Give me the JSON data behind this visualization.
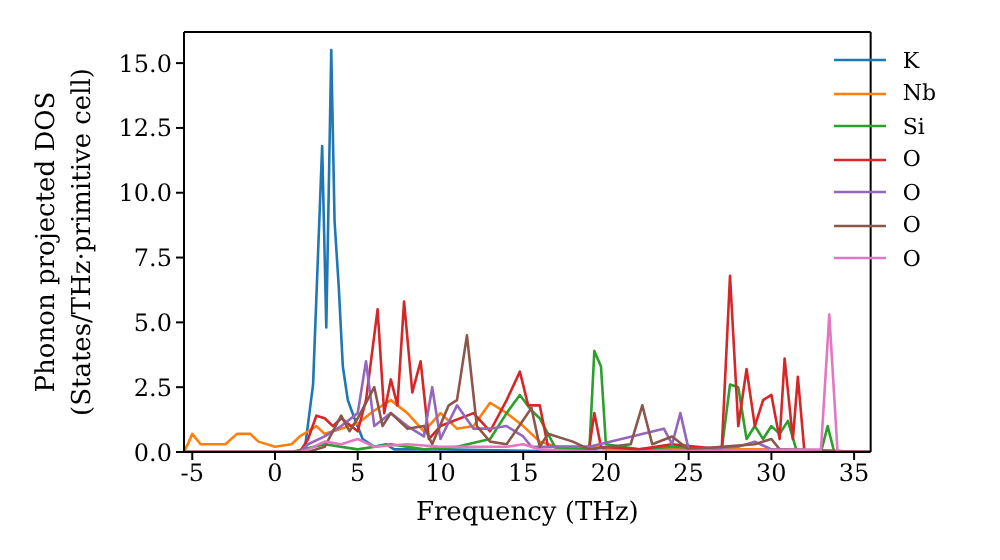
{
  "chart_data": {
    "type": "line",
    "xlabel": "Frequency (THz)",
    "ylabel": "Phonon projected DOS\n(States/THz·primitive cell)",
    "xlim": [
      -5.5,
      36
    ],
    "xticks": [
      -5,
      0,
      5,
      10,
      15,
      20,
      25,
      30,
      35
    ],
    "ylim": [
      0,
      16.2
    ],
    "yticks": [
      {
        "value": 0,
        "label": "0.0"
      },
      {
        "value": 2.5,
        "label": "2.5"
      },
      {
        "value": 5,
        "label": "5.0"
      },
      {
        "value": 7.5,
        "label": "7.5"
      },
      {
        "value": 10,
        "label": "10.0"
      },
      {
        "value": 12.5,
        "label": "12.5"
      },
      {
        "value": 15,
        "label": "15.0"
      }
    ],
    "legend": "top right",
    "grid": false,
    "series": [
      {
        "name": "K",
        "color": "#1f77b4",
        "x": [
          -5.5,
          1.5,
          1.8,
          2.3,
          2.85,
          3.1,
          3.4,
          3.6,
          3.85,
          4.1,
          4.4,
          4.8,
          5.3,
          6,
          6.7,
          7.2,
          10,
          20,
          30,
          36
        ],
        "values": [
          0,
          0,
          0.1,
          2.6,
          11.8,
          4.8,
          15.5,
          8.9,
          6.4,
          3.3,
          2,
          1.3,
          0.5,
          0.2,
          0.3,
          0.1,
          0.1,
          0,
          0,
          0
        ]
      },
      {
        "name": "Nb",
        "color": "#ff7f0e",
        "x": [
          -5.5,
          -5.2,
          -5,
          -4.5,
          -4,
          -3,
          -2.3,
          -1.5,
          -1,
          0,
          1,
          1.5,
          2,
          2.5,
          3,
          4,
          5,
          6,
          7,
          8,
          9,
          10,
          11,
          12,
          13,
          14,
          15,
          16,
          17,
          18,
          19.5,
          20,
          25,
          30,
          36
        ],
        "values": [
          0,
          0.4,
          0.7,
          0.3,
          0.3,
          0.3,
          0.7,
          0.7,
          0.4,
          0.2,
          0.3,
          0.6,
          0.8,
          1,
          0.7,
          0.9,
          1.1,
          1.6,
          2,
          1.5,
          0.8,
          1.5,
          0.9,
          1,
          1.9,
          1.5,
          1,
          0.4,
          0.2,
          0.1,
          0.2,
          0.1,
          0.1,
          0.1,
          0
        ]
      },
      {
        "name": "Si",
        "color": "#2ca02c",
        "x": [
          -5.5,
          1,
          3,
          5,
          7,
          9,
          11,
          13,
          14,
          14.8,
          15.5,
          16,
          17,
          19,
          19.3,
          19.7,
          20,
          22,
          24,
          27,
          27.5,
          28,
          28.5,
          29,
          29.5,
          30,
          30.5,
          31,
          31.5,
          33,
          33.4,
          33.8,
          36
        ],
        "values": [
          0,
          0,
          0.3,
          0.1,
          0.3,
          0.1,
          0.2,
          0.5,
          1.5,
          2.2,
          1.6,
          1.3,
          0.1,
          0.1,
          3.9,
          3.3,
          0.3,
          0.1,
          0.2,
          0.1,
          2.6,
          2.5,
          0.5,
          1,
          0.5,
          1,
          0.7,
          1.2,
          0.1,
          0,
          1,
          0,
          0
        ]
      },
      {
        "name": "O",
        "color": "#d62728",
        "x": [
          -5.5,
          1.5,
          2,
          2.5,
          3,
          3.5,
          4,
          5,
          5.5,
          6.2,
          6.6,
          7,
          7.4,
          7.8,
          8.3,
          8.8,
          9.3,
          10,
          12,
          13,
          14,
          14.8,
          15.3,
          16,
          16.5,
          19,
          19.3,
          19.7,
          22,
          24,
          27,
          27.5,
          28,
          28.5,
          29,
          29.5,
          30,
          30.5,
          30.8,
          31.3,
          31.6,
          32,
          36
        ],
        "values": [
          0,
          0,
          0.5,
          1.4,
          1.3,
          1,
          1.3,
          0.8,
          2,
          5.5,
          1.5,
          2.8,
          1.8,
          5.8,
          2.3,
          3.5,
          0.5,
          1,
          1.5,
          0.8,
          2,
          3.1,
          1.8,
          1.8,
          0.2,
          0.2,
          1.5,
          0.2,
          0.1,
          0.3,
          0.1,
          6.8,
          1,
          3.2,
          1,
          2,
          2.2,
          0.5,
          3.6,
          0.5,
          2.9,
          0,
          0
        ]
      },
      {
        "name": "O",
        "color": "#9467bd",
        "x": [
          -5.5,
          1.5,
          2,
          3,
          4,
          5,
          5.5,
          6,
          7,
          8,
          9,
          9.5,
          10,
          11,
          12,
          13,
          14,
          15,
          15.5,
          19,
          23.5,
          24,
          24.5,
          25,
          28,
          29,
          30,
          36
        ],
        "values": [
          0,
          0,
          0.3,
          0.6,
          1,
          1.5,
          3.5,
          1,
          1.5,
          1,
          0.6,
          2.5,
          0.5,
          1.8,
          0.9,
          0.9,
          1,
          0.6,
          0.2,
          0.2,
          0.9,
          0.3,
          1.5,
          0.1,
          0.2,
          0.4,
          0.1,
          0
        ]
      },
      {
        "name": "O",
        "color": "#8c564b",
        "x": [
          -5.5,
          2,
          3,
          4,
          4.5,
          5,
          6,
          6.5,
          7,
          8,
          9,
          9.5,
          10.5,
          11,
          11.6,
          12.2,
          13,
          14,
          15.5,
          16,
          16.5,
          18,
          19,
          21.5,
          22.2,
          22.8,
          24,
          25,
          29,
          30,
          30.5,
          36
        ],
        "values": [
          0,
          0,
          0.2,
          1.4,
          0.8,
          1.3,
          2.5,
          1,
          1.5,
          0.9,
          1,
          0.3,
          1.8,
          2,
          4.5,
          1,
          0.4,
          0.3,
          1.7,
          0.2,
          0.7,
          0.4,
          0.1,
          0.3,
          1.8,
          0.3,
          0.6,
          0.1,
          0.3,
          0.5,
          0.1,
          0
        ]
      },
      {
        "name": "O",
        "color": "#e377c2",
        "x": [
          -5.5,
          1.5,
          2,
          3,
          4,
          5,
          6,
          8,
          10,
          14,
          15,
          16,
          20,
          33,
          33.5,
          34,
          36
        ],
        "values": [
          0,
          0,
          0.1,
          0.4,
          0.3,
          0.5,
          0.2,
          0.3,
          0.2,
          0.2,
          0.3,
          0.1,
          0,
          0.1,
          5.3,
          0,
          0
        ]
      }
    ]
  }
}
